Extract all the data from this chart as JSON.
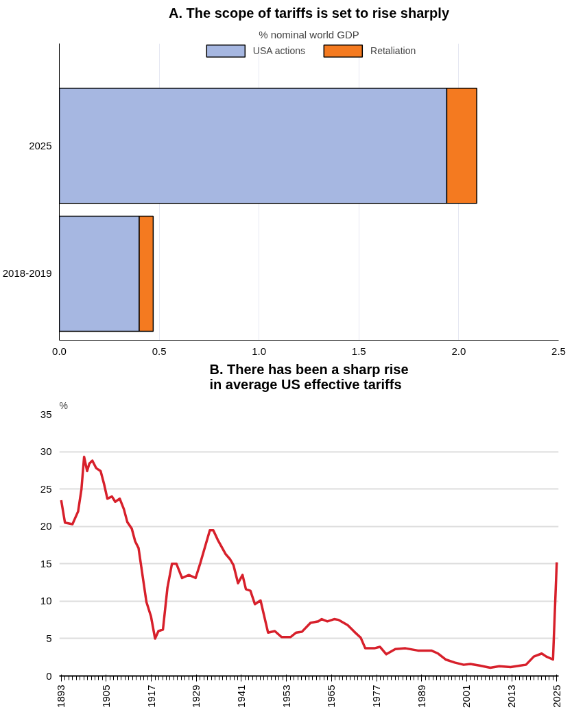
{
  "chart_data": [
    {
      "type": "bar",
      "orientation": "horizontal",
      "stacked": true,
      "title": "A. The scope of tariffs is set to rise sharply",
      "subtitle": "% nominal world GDP",
      "categories": [
        "2025",
        "2018-2019"
      ],
      "series": [
        {
          "name": "USA actions",
          "color": "#a6b7e1",
          "values": [
            1.94,
            0.4
          ]
        },
        {
          "name": "Retaliation",
          "color": "#f47a20",
          "values": [
            0.15,
            0.07
          ]
        }
      ],
      "xlim": [
        0,
        2.5
      ],
      "xticks": [
        {
          "value": 0,
          "label": "0.0"
        },
        {
          "value": 0.5,
          "label": "0.5"
        },
        {
          "value": 1,
          "label": "1.0"
        },
        {
          "value": 1.5,
          "label": "1.5"
        },
        {
          "value": 2,
          "label": "2.0"
        },
        {
          "value": 2.5,
          "label": "2.5"
        }
      ],
      "grid": "x",
      "legend": "top"
    },
    {
      "type": "line",
      "title": "B. There has been a sharp rise\nin average US effective tariffs",
      "ylabel": "%",
      "series": [
        {
          "color": "#d7202b",
          "x": [
            1893,
            1894,
            1896,
            1897.5,
            1898.4,
            1899.1,
            1899.9,
            1900.5,
            1901.3,
            1902.3,
            1903.5,
            1904.4,
            1905.3,
            1906.5,
            1907.4,
            1908.6,
            1909.7,
            1910.6,
            1911.8,
            1912.7,
            1913.6,
            1915.7,
            1916.9,
            1918,
            1918.9,
            1920.1,
            1921.3,
            1922.5,
            1923.7,
            1925.2,
            1927,
            1928.8,
            1930,
            1932.6,
            1933.5,
            1934.7,
            1936.8,
            1938,
            1938.9,
            1940.1,
            1941.3,
            1942.2,
            1943.4,
            1944.6,
            1946.1,
            1948.1,
            1949.9,
            1951.7,
            1954.1,
            1955.6,
            1957.1,
            1959.4,
            1961.5,
            1962.4,
            1963.9,
            1965.7,
            1966.9,
            1969.3,
            1971.1,
            1972.8,
            1974,
            1976.4,
            1977.9,
            1979.6,
            1982,
            1984.7,
            1988,
            1991.6,
            1993.4,
            1995.4,
            1997.8,
            2000.2,
            2002,
            2004.4,
            2007.3,
            2009.7,
            2012.7,
            2016.8,
            2018.9,
            2021,
            2022.2,
            2024,
            2025
          ],
          "values": [
            23.5,
            20.5,
            20.3,
            22,
            25,
            29.3,
            27.4,
            28.4,
            28.8,
            27.8,
            27.4,
            25.7,
            23.7,
            24,
            23.3,
            23.7,
            22.3,
            20.6,
            19.7,
            18,
            17.1,
            9.9,
            8,
            5,
            6,
            6.2,
            11.8,
            15,
            15,
            13.1,
            13.5,
            13.1,
            15,
            19.5,
            19.5,
            18.2,
            16.3,
            15.6,
            14.8,
            12.4,
            13.5,
            11.6,
            11.4,
            9.6,
            10.1,
            5.8,
            6,
            5.2,
            5.2,
            5.8,
            5.9,
            7.1,
            7.3,
            7.6,
            7.3,
            7.6,
            7.5,
            6.8,
            5.9,
            5.1,
            3.7,
            3.7,
            3.9,
            2.9,
            3.6,
            3.7,
            3.4,
            3.4,
            3,
            2.2,
            1.8,
            1.5,
            1.6,
            1.4,
            1.1,
            1.3,
            1.2,
            1.5,
            2.6,
            3,
            2.6,
            2.2,
            15.2
          ]
        }
      ],
      "xlim": [
        1892.5,
        2025.5
      ],
      "xticks": [
        1893,
        1905,
        1917,
        1929,
        1941,
        1953,
        1965,
        1977,
        1989,
        2001,
        2013,
        2025
      ],
      "ylim": [
        0,
        35
      ],
      "yticks": [
        0,
        5,
        10,
        15,
        20,
        25,
        30,
        35
      ],
      "grid": "y",
      "line_style": "solid",
      "marker": "none"
    }
  ]
}
